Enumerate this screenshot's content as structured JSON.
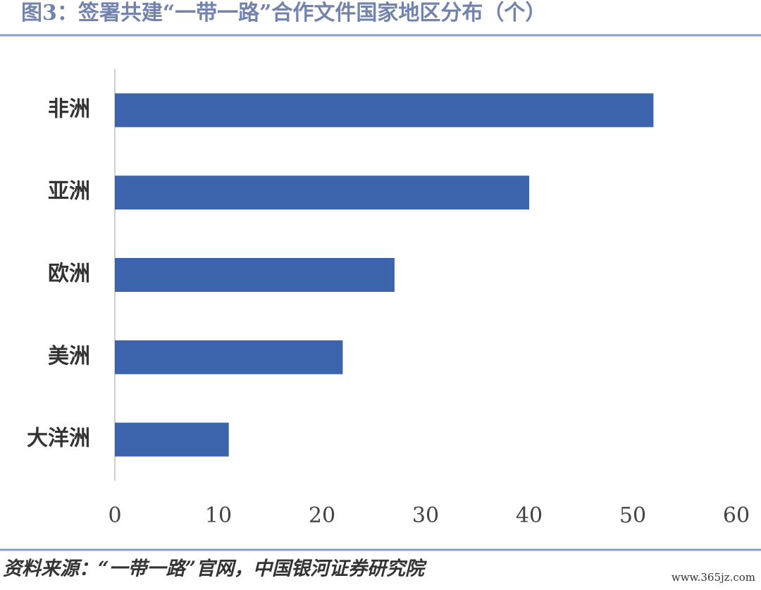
{
  "chart_data": {
    "type": "hbar",
    "title": "图3：签署共建“一带一路”合作文件国家地区分布（个）",
    "categories": [
      "非洲",
      "亚洲",
      "欧洲",
      "美洲",
      "大洋洲"
    ],
    "values": [
      52,
      40,
      27,
      22,
      11
    ],
    "color": "#3b64ad",
    "xlim": [
      0,
      60
    ],
    "xticks": [
      0,
      10,
      20,
      30,
      40,
      50,
      60
    ],
    "grid": false,
    "source": "资料来源：“一带一路”官网，中国银河证券研究院",
    "watermark": "www.365jz.com"
  }
}
